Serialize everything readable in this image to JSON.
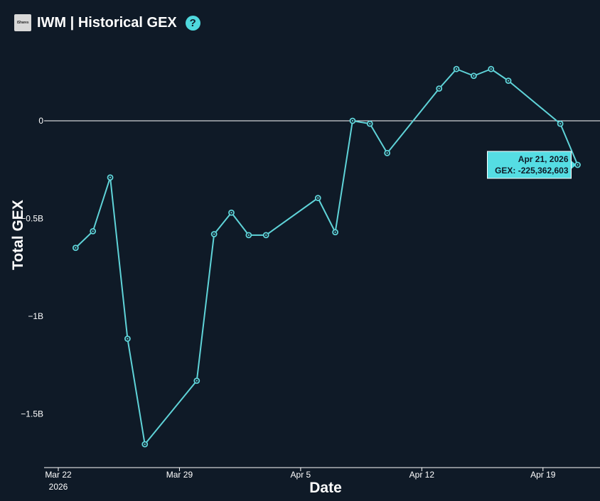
{
  "header": {
    "logo_text": "iShares",
    "ticker": "IWM",
    "separator": "|",
    "title": "Historical GEX",
    "help_glyph": "?"
  },
  "chart_data": {
    "type": "line",
    "xlabel": "Date",
    "ylabel": "Total GEX",
    "x_ticks": [
      {
        "date": "2026-03-22",
        "label": "Mar 22",
        "sublabel": "2026"
      },
      {
        "date": "2026-03-29",
        "label": "Mar 29",
        "sublabel": ""
      },
      {
        "date": "2026-04-05",
        "label": "Apr 5",
        "sublabel": ""
      },
      {
        "date": "2026-04-12",
        "label": "Apr 12",
        "sublabel": ""
      },
      {
        "date": "2026-04-19",
        "label": "Apr 19",
        "sublabel": ""
      }
    ],
    "y_ticks": [
      {
        "value": 0,
        "label": "0"
      },
      {
        "value": -500000000,
        "label": "−0.5B"
      },
      {
        "value": -1000000000,
        "label": "−1B"
      },
      {
        "value": -1500000000,
        "label": "−1.5B"
      }
    ],
    "xlim": [
      "2026-03-22",
      "2026-04-22"
    ],
    "ylim": [
      -1750000000,
      350000000
    ],
    "grid": false,
    "zero_line": true,
    "series": [
      {
        "color": "#5fd3d8",
        "points": [
          {
            "date": "2026-03-23",
            "value": -650000000
          },
          {
            "date": "2026-03-24",
            "value": -565000000
          },
          {
            "date": "2026-03-25",
            "value": -290000000
          },
          {
            "date": "2026-03-26",
            "value": -1115000000
          },
          {
            "date": "2026-03-27",
            "value": -1655000000
          },
          {
            "date": "2026-03-30",
            "value": -1330000000
          },
          {
            "date": "2026-03-31",
            "value": -580000000
          },
          {
            "date": "2026-04-01",
            "value": -470000000
          },
          {
            "date": "2026-04-02",
            "value": -585000000
          },
          {
            "date": "2026-04-03",
            "value": -585000000
          },
          {
            "date": "2026-04-06",
            "value": -395000000
          },
          {
            "date": "2026-04-07",
            "value": -570000000
          },
          {
            "date": "2026-04-08",
            "value": 0
          },
          {
            "date": "2026-04-09",
            "value": -15000000
          },
          {
            "date": "2026-04-10",
            "value": -165000000
          },
          {
            "date": "2026-04-13",
            "value": 165000000
          },
          {
            "date": "2026-04-14",
            "value": 265000000
          },
          {
            "date": "2026-04-15",
            "value": 230000000
          },
          {
            "date": "2026-04-16",
            "value": 265000000
          },
          {
            "date": "2026-04-17",
            "value": 205000000
          },
          {
            "date": "2026-04-20",
            "value": -15000000
          },
          {
            "date": "2026-04-21",
            "value": -225362603
          }
        ]
      }
    ],
    "tooltip": {
      "date_label": "Apr 21, 2026",
      "value_label": "GEX: -225,362,603",
      "background": "#55dde3"
    }
  }
}
